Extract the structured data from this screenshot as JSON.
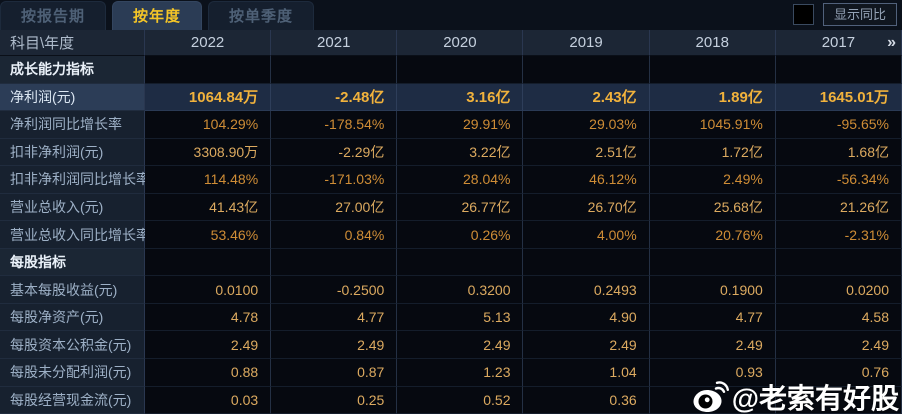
{
  "tabs": [
    {
      "label": "按报告期",
      "active": false
    },
    {
      "label": "按年度",
      "active": true
    },
    {
      "label": "按单季度",
      "active": false
    }
  ],
  "controls": {
    "show_yoy_label": "显示同比"
  },
  "table": {
    "corner_label": "科目\\年度",
    "years": [
      "2022",
      "2021",
      "2020",
      "2019",
      "2018",
      "2017"
    ],
    "more_icon": "»",
    "rows": [
      {
        "type": "section",
        "label": "成长能力指标",
        "values": [
          "",
          "",
          "",
          "",
          "",
          ""
        ]
      },
      {
        "type": "highlight",
        "label": "净利润(元)",
        "values": [
          "1064.84万",
          "-2.48亿",
          "3.16亿",
          "2.43亿",
          "1.89亿",
          "1645.01万"
        ]
      },
      {
        "type": "pct",
        "label": "净利润同比增长率",
        "values": [
          "104.29%",
          "-178.54%",
          "29.91%",
          "29.03%",
          "1045.91%",
          "-95.65%"
        ]
      },
      {
        "type": "value",
        "label": "扣非净利润(元)",
        "values": [
          "3308.90万",
          "-2.29亿",
          "3.22亿",
          "2.51亿",
          "1.72亿",
          "1.68亿"
        ]
      },
      {
        "type": "pct",
        "label": "扣非净利润同比增长率",
        "values": [
          "114.48%",
          "-171.03%",
          "28.04%",
          "46.12%",
          "2.49%",
          "-56.34%"
        ]
      },
      {
        "type": "value",
        "label": "营业总收入(元)",
        "values": [
          "41.43亿",
          "27.00亿",
          "26.77亿",
          "26.70亿",
          "25.68亿",
          "21.26亿"
        ]
      },
      {
        "type": "pct",
        "label": "营业总收入同比增长率",
        "values": [
          "53.46%",
          "0.84%",
          "0.26%",
          "4.00%",
          "20.76%",
          "-2.31%"
        ]
      },
      {
        "type": "section",
        "label": "每股指标",
        "values": [
          "",
          "",
          "",
          "",
          "",
          ""
        ]
      },
      {
        "type": "value",
        "label": "基本每股收益(元)",
        "values": [
          "0.0100",
          "-0.2500",
          "0.3200",
          "0.2493",
          "0.1900",
          "0.0200"
        ]
      },
      {
        "type": "value",
        "label": "每股净资产(元)",
        "values": [
          "4.78",
          "4.77",
          "5.13",
          "4.90",
          "4.77",
          "4.58"
        ]
      },
      {
        "type": "value",
        "label": "每股资本公积金(元)",
        "values": [
          "2.49",
          "2.49",
          "2.49",
          "2.49",
          "2.49",
          "2.49"
        ]
      },
      {
        "type": "value",
        "label": "每股未分配利润(元)",
        "values": [
          "0.88",
          "0.87",
          "1.23",
          "1.04",
          "0.93",
          "0.76"
        ]
      },
      {
        "type": "value",
        "label": "每股经营现金流(元)",
        "values": [
          "0.03",
          "0.25",
          "0.52",
          "0.36",
          "",
          ""
        ]
      }
    ]
  },
  "watermark": {
    "text": "@老索有好股"
  },
  "colors": {
    "active_tab_text": "#f4c527",
    "highlight_value": "#f1b23c",
    "percent_value": "#cf8d36",
    "normal_value": "#dcaa60",
    "header_bg": "#1c2635",
    "highlight_row_bg": "#1e2c44"
  }
}
